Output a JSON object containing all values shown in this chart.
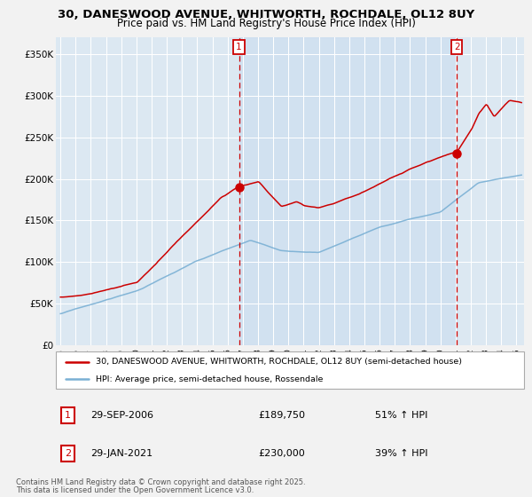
{
  "title_line1": "30, DANESWOOD AVENUE, WHITWORTH, ROCHDALE, OL12 8UY",
  "title_line2": "Price paid vs. HM Land Registry's House Price Index (HPI)",
  "property_label": "30, DANESWOOD AVENUE, WHITWORTH, ROCHDALE, OL12 8UY (semi-detached house)",
  "hpi_label": "HPI: Average price, semi-detached house, Rossendale",
  "property_color": "#cc0000",
  "hpi_color": "#7ab0d4",
  "chart_bg_color": "#dce8f2",
  "fig_bg_color": "#f2f2f2",
  "sale1_date": "29-SEP-2006",
  "sale1_price": "£189,750",
  "sale1_hpi": "51% ↑ HPI",
  "sale2_date": "29-JAN-2021",
  "sale2_price": "£230,000",
  "sale2_hpi": "39% ↑ HPI",
  "vline1_x": 2006.75,
  "vline2_x": 2021.08,
  "sale1_dot_y": 189750,
  "sale2_dot_y": 230000,
  "ylim": [
    0,
    370000
  ],
  "xlim_start": 1994.7,
  "xlim_end": 2025.5,
  "yticks": [
    0,
    50000,
    100000,
    150000,
    200000,
    250000,
    300000,
    350000
  ],
  "ytick_labels": [
    "£0",
    "£50K",
    "£100K",
    "£150K",
    "£200K",
    "£250K",
    "£300K",
    "£350K"
  ],
  "xtick_years": [
    1995,
    1996,
    1997,
    1998,
    1999,
    2000,
    2001,
    2002,
    2003,
    2004,
    2005,
    2006,
    2007,
    2008,
    2009,
    2010,
    2011,
    2012,
    2013,
    2014,
    2015,
    2016,
    2017,
    2018,
    2019,
    2020,
    2021,
    2022,
    2023,
    2024,
    2025
  ],
  "footer_line1": "Contains HM Land Registry data © Crown copyright and database right 2025.",
  "footer_line2": "This data is licensed under the Open Government Licence v3.0.",
  "vline_color": "#cc0000",
  "shade_color": "#c8ddf0",
  "label_box_color": "#cc0000"
}
